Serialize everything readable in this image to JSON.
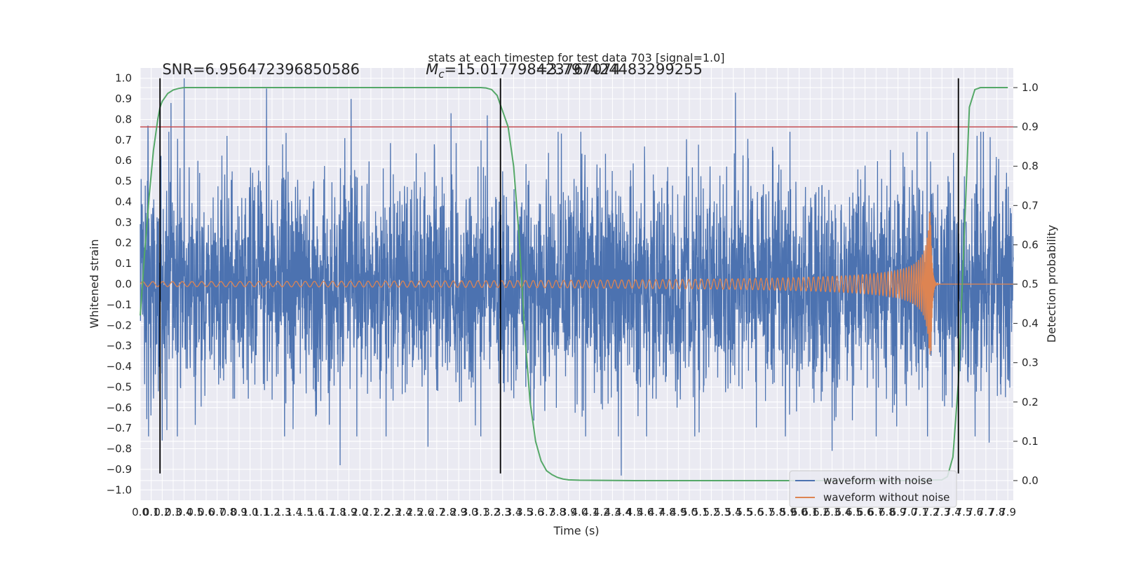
{
  "colors": {
    "background": "#ffffff",
    "plot_background": "#eaeaf2",
    "grid": "#ffffff",
    "noisy": "#4c72b0",
    "clean": "#dd8452",
    "probability": "#55a868",
    "threshold": "#c44e52",
    "marker_lines": "#000000",
    "text": "#262626"
  },
  "chart_data": {
    "type": "line",
    "title": "stats at each timestep for test data 703 [signal=1.0]",
    "xlabel": "Time (s)",
    "ylabel_left": "Whitened strain",
    "ylabel_right": "Detection probability",
    "xlim": [
      0.0,
      7.95
    ],
    "ylim_left": [
      -1.05,
      1.05
    ],
    "ylim_right": [
      -0.05,
      1.05
    ],
    "x_ticks": [
      0.0,
      0.1,
      0.2,
      0.3,
      0.4,
      0.5,
      0.6,
      0.7,
      0.8,
      0.9,
      1.0,
      1.1,
      1.2,
      1.3,
      1.4,
      1.5,
      1.6,
      1.7,
      1.8,
      1.9,
      2.0,
      2.1,
      2.2,
      2.3,
      2.4,
      2.5,
      2.6,
      2.7,
      2.8,
      2.9,
      3.0,
      3.1,
      3.2,
      3.3,
      3.4,
      3.5,
      3.6,
      3.7,
      3.8,
      3.9,
      4.0,
      4.1,
      4.2,
      4.3,
      4.4,
      4.5,
      4.6,
      4.7,
      4.8,
      4.9,
      5.0,
      5.1,
      5.2,
      5.3,
      5.4,
      5.5,
      5.6,
      5.7,
      5.8,
      5.9,
      6.0,
      6.1,
      6.2,
      6.3,
      6.4,
      6.5,
      6.6,
      6.7,
      6.8,
      6.9,
      7.0,
      7.1,
      7.2,
      7.3,
      7.4,
      7.5,
      7.6,
      7.7,
      7.8,
      7.9
    ],
    "x_tick_labels": [
      "0.0",
      "0.1",
      "0.2",
      "0.3",
      "0.4",
      "0.5",
      "0.6",
      "0.7",
      "0.8",
      "0.9",
      "1.0",
      "1.1",
      "1.2",
      "1.3",
      "1.4",
      "1.5",
      "1.6",
      "1.7",
      "1.8",
      "1.9",
      "2.0",
      "2.1",
      "2.2",
      "2.3",
      "2.4",
      "2.5",
      "2.6",
      "2.7",
      "2.8",
      "2.9",
      "3.0",
      "3.1",
      "3.2",
      "3.3",
      "3.4",
      "3.5",
      "3.6",
      "3.7",
      "3.8",
      "3.9",
      "4.0",
      "4.1",
      "4.2",
      "4.3",
      "4.4",
      "4.5",
      "4.6",
      "4.7",
      "4.8",
      "4.9",
      "5.0",
      "5.1",
      "5.2",
      "5.3",
      "5.4",
      "5.5",
      "5.6",
      "5.7",
      "5.8",
      "5.9",
      "6.0",
      "6.1",
      "6.2",
      "6.3",
      "6.4",
      "6.5",
      "6.6",
      "6.7",
      "6.8",
      "6.9",
      "7.0",
      "7.1",
      "7.2",
      "7.3",
      "7.4",
      "7.5",
      "7.6",
      "7.7",
      "7.8",
      "7.9"
    ],
    "y_left_ticks": [
      -1.0,
      -0.9,
      -0.8,
      -0.7,
      -0.6,
      -0.5,
      -0.4,
      -0.3,
      -0.2,
      -0.1,
      0.0,
      0.1,
      0.2,
      0.3,
      0.4,
      0.5,
      0.6,
      0.7,
      0.8,
      0.9,
      1.0
    ],
    "y_left_tick_labels": [
      "−1.0",
      "−0.9",
      "−0.8",
      "−0.7",
      "−0.6",
      "−0.5",
      "−0.4",
      "−0.3",
      "−0.2",
      "−0.1",
      "0.0",
      "0.1",
      "0.2",
      "0.3",
      "0.4",
      "0.5",
      "0.6",
      "0.7",
      "0.8",
      "0.9",
      "1.0"
    ],
    "y_right_ticks": [
      0.0,
      0.1,
      0.2,
      0.3,
      0.4,
      0.5,
      0.6,
      0.7,
      0.8,
      0.9,
      1.0
    ],
    "y_right_tick_labels": [
      "0.0",
      "0.1",
      "0.2",
      "0.3",
      "0.4",
      "0.5",
      "0.6",
      "0.7",
      "0.8",
      "0.9",
      "1.0"
    ],
    "grid": true,
    "threshold_probability": 0.9,
    "vertical_markers_s": [
      0.18,
      3.28,
      7.45
    ],
    "vertical_marker_range_strain": [
      -0.92,
      1.0
    ],
    "annotations": [
      {
        "text": "SNR=6.956472396850586",
        "x": 0.2,
        "y": 1.02
      },
      {
        "text": "M_c=15.017798423767074",
        "x": 2.6,
        "y": 1.02
      },
      {
        "text": "=3.797424483299255",
        "x": 3.6,
        "y": 1.02
      }
    ],
    "series": [
      {
        "name": "waveform with noise",
        "axis": "left",
        "noise_std": 0.26,
        "peak_values": [
          {
            "x": 0.07,
            "y": 0.77
          },
          {
            "x": 0.28,
            "y": 0.88
          },
          {
            "x": 0.4,
            "y": 1.0
          },
          {
            "x": 0.79,
            "y": 0.72
          },
          {
            "x": 1.15,
            "y": 0.95
          },
          {
            "x": 1.92,
            "y": 0.9
          },
          {
            "x": 2.83,
            "y": 0.83
          },
          {
            "x": 3.16,
            "y": 0.82
          },
          {
            "x": 5.42,
            "y": 0.93
          },
          {
            "x": 4.38,
            "y": -0.93
          },
          {
            "x": 1.82,
            "y": -0.88
          },
          {
            "x": 2.62,
            "y": -0.79
          },
          {
            "x": 6.3,
            "y": -0.81
          },
          {
            "x": 7.73,
            "y": -0.77
          },
          {
            "x": 0.2,
            "y": -0.76
          }
        ]
      },
      {
        "name": "waveform without noise",
        "axis": "left",
        "merger_time_s": 7.2,
        "peak_amplitude": 0.37,
        "early_amplitude": 0.012,
        "start_frequency_hz": 11,
        "ringdown_end_s": 7.27
      },
      {
        "name": "Detection probability",
        "axis": "right",
        "x": [
          0.0,
          0.02,
          0.04,
          0.06,
          0.08,
          0.1,
          0.12,
          0.14,
          0.16,
          0.18,
          0.2,
          0.25,
          0.3,
          0.35,
          0.4,
          0.5,
          0.6,
          1.0,
          2.0,
          3.0,
          3.1,
          3.15,
          3.2,
          3.25,
          3.3,
          3.35,
          3.4,
          3.45,
          3.5,
          3.55,
          3.6,
          3.65,
          3.7,
          3.75,
          3.8,
          3.85,
          3.9,
          4.0,
          4.5,
          5.0,
          6.0,
          7.0,
          7.3,
          7.35,
          7.4,
          7.45,
          7.5,
          7.55,
          7.6,
          7.65,
          7.7,
          7.8,
          7.9
        ],
        "y": [
          0.42,
          0.5,
          0.58,
          0.65,
          0.72,
          0.78,
          0.84,
          0.88,
          0.92,
          0.95,
          0.965,
          0.985,
          0.994,
          0.998,
          1.0,
          1.0,
          1.0,
          1.0,
          1.0,
          1.0,
          1.0,
          0.999,
          0.995,
          0.98,
          0.94,
          0.9,
          0.8,
          0.62,
          0.38,
          0.2,
          0.1,
          0.05,
          0.025,
          0.015,
          0.008,
          0.004,
          0.002,
          0.001,
          0.0,
          0.0,
          0.0,
          0.0,
          0.002,
          0.01,
          0.06,
          0.25,
          0.6,
          0.95,
          0.995,
          1.0,
          1.0,
          1.0,
          1.0
        ]
      }
    ]
  },
  "legend": {
    "items": [
      {
        "label": "waveform with noise",
        "color": "#4c72b0"
      },
      {
        "label": "waveform without noise",
        "color": "#dd8452"
      }
    ],
    "placement": "bottom-right"
  }
}
